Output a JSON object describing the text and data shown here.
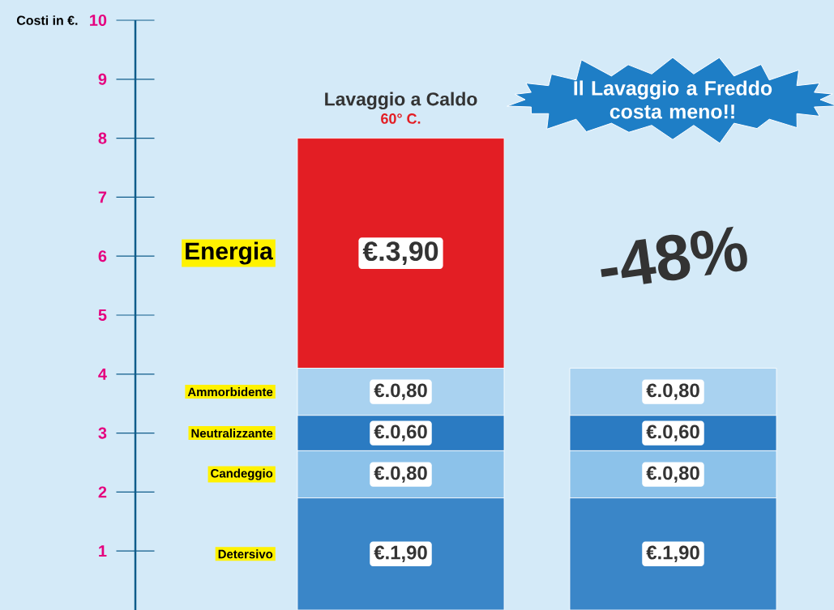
{
  "chart_data": {
    "type": "bar",
    "stacked": true,
    "ylabel": "Costi in €.",
    "categories": [
      null,
      null
    ],
    "series": [
      {
        "name": "Detersivo",
        "color": "#3a86c8",
        "values": [
          1.9,
          1.9
        ],
        "value_labels": [
          "€.1,90",
          "€.1,90"
        ]
      },
      {
        "name": "Candeggio",
        "color": "#8cc2ea",
        "values": [
          0.8,
          0.8
        ],
        "value_labels": [
          "€.0,80",
          "€.0,80"
        ]
      },
      {
        "name": "Neutralizzante",
        "color": "#2b7bc2",
        "values": [
          0.6,
          0.6
        ],
        "value_labels": [
          "€.0,60",
          "€.0,60"
        ]
      },
      {
        "name": "Ammorbidente",
        "color": "#a9d2f0",
        "values": [
          0.8,
          0.8
        ],
        "value_labels": [
          "€.0,80",
          "€.0,80"
        ]
      },
      {
        "name": "Energia",
        "color": "#e31e24",
        "values": [
          3.9,
          null
        ],
        "value_labels": [
          "€.3,90",
          null
        ]
      }
    ],
    "ylim": [
      0,
      10
    ],
    "yticks": [
      1,
      2,
      3,
      4,
      5,
      6,
      7,
      8,
      9,
      10
    ],
    "annotations": [
      "Lavaggio a Caldo",
      "60° C.",
      "Il Lavaggio a Freddo costa meno!!",
      "-48%"
    ],
    "legend": false,
    "grid": false
  }
}
